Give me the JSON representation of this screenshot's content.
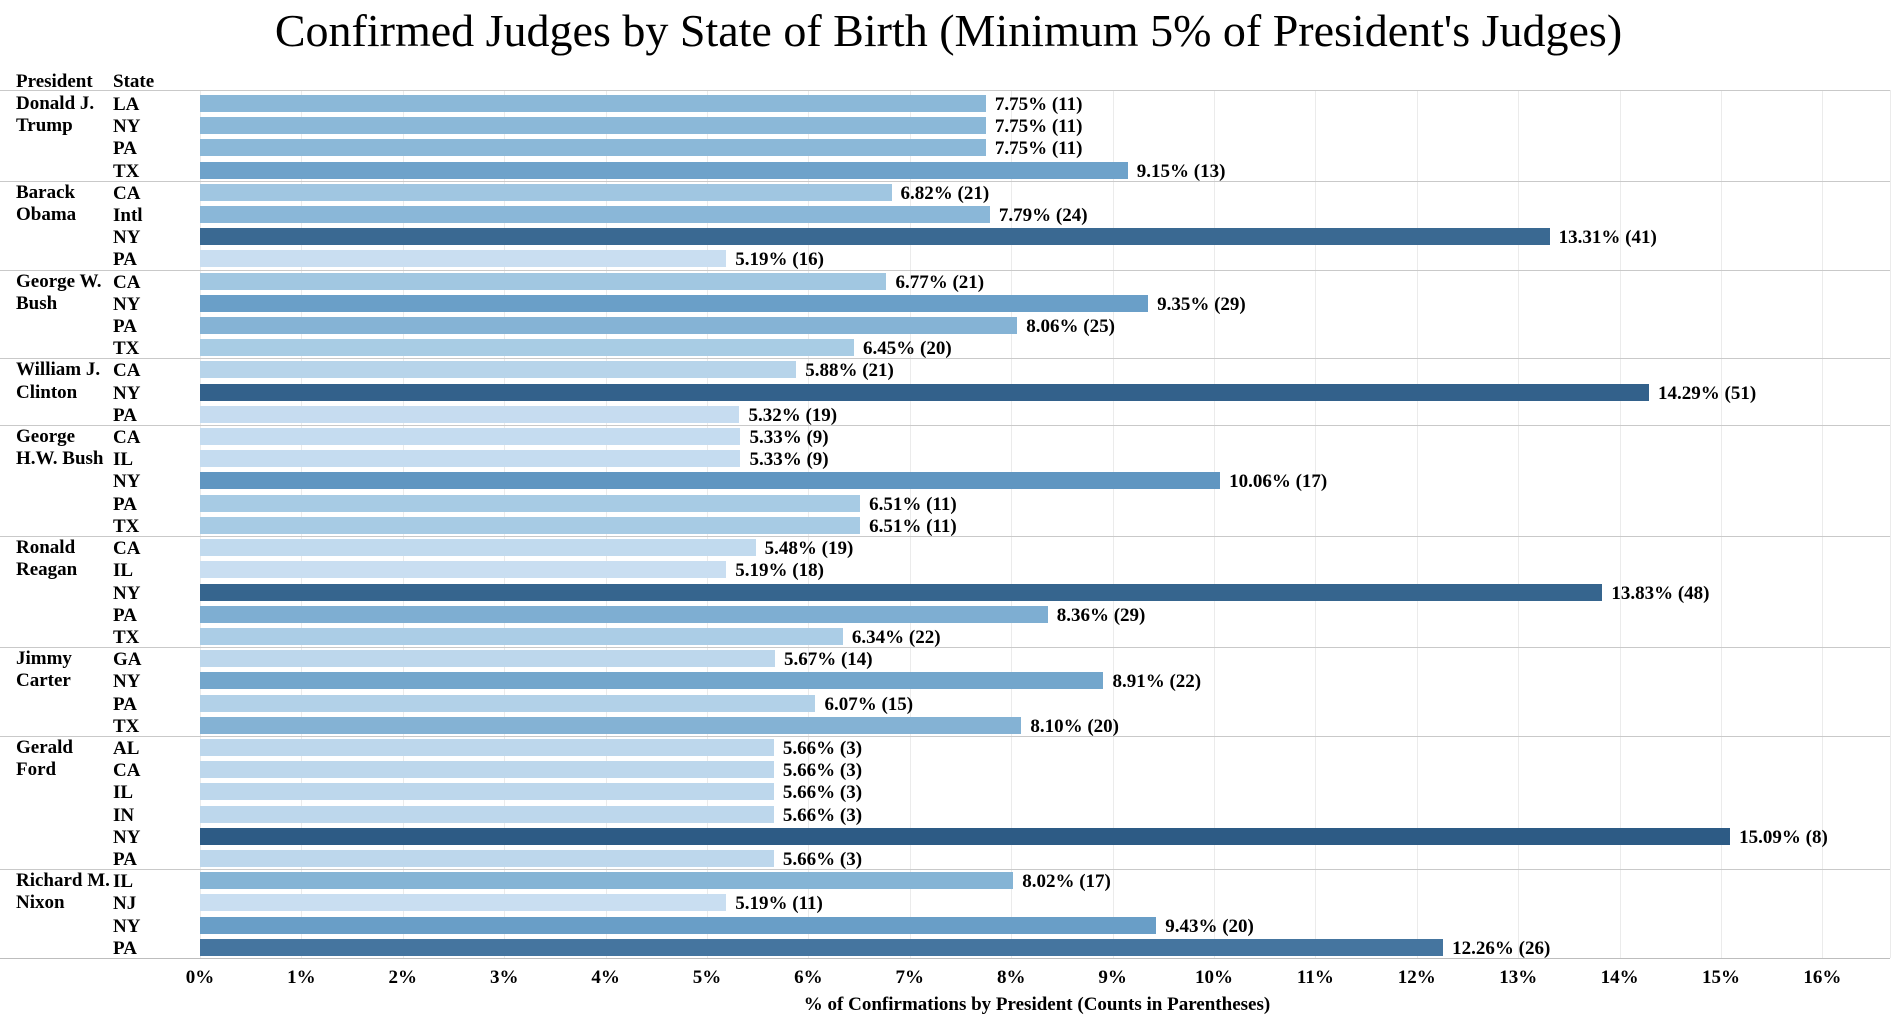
{
  "page": {
    "title": "Confirmed Judges by State of Birth (Minimum 5% of President's Judges)"
  },
  "table_headers": {
    "president": "President",
    "state": "State"
  },
  "x_axis": {
    "tick_labels": [
      "0%",
      "1%",
      "2%",
      "3%",
      "4%",
      "5%",
      "6%",
      "7%",
      "8%",
      "9%",
      "10%",
      "11%",
      "12%",
      "13%",
      "14%",
      "15%",
      "16%"
    ],
    "title": "% of Confirmations by President (Counts in Parentheses)"
  },
  "chart_data": {
    "type": "bar",
    "orientation": "horizontal",
    "title": "Confirmed Judges by State of Birth (Minimum 5% of President's Judges)",
    "xlabel": "% of Confirmations by President (Counts in Parentheses)",
    "xlim": [
      0,
      16.7
    ],
    "x_tick_step_percent": 1,
    "grid": true,
    "bar_color_scale": {
      "description": "sequential blues; darker bar = higher percent",
      "anchors": [
        {
          "value": 5.19,
          "color": "#c9def1"
        },
        {
          "value": 6.5,
          "color": "#a7cbe4"
        },
        {
          "value": 7.75,
          "color": "#8bb8d8"
        },
        {
          "value": 9.4,
          "color": "#699ec7"
        },
        {
          "value": 10.06,
          "color": "#6096c1"
        },
        {
          "value": 12.26,
          "color": "#45759f"
        },
        {
          "value": 13.31,
          "color": "#3a6992"
        },
        {
          "value": 15.09,
          "color": "#2d5b85"
        }
      ]
    },
    "groups": [
      {
        "president": "Donald J. Trump",
        "president_lines": [
          "Donald J.",
          "Trump"
        ],
        "bars": [
          {
            "state": "LA",
            "percent": 7.75,
            "count": 11,
            "label": "7.75% (11)"
          },
          {
            "state": "NY",
            "percent": 7.75,
            "count": 11,
            "label": "7.75% (11)"
          },
          {
            "state": "PA",
            "percent": 7.75,
            "count": 11,
            "label": "7.75% (11)"
          },
          {
            "state": "TX",
            "percent": 9.15,
            "count": 13,
            "label": "9.15% (13)"
          }
        ]
      },
      {
        "president": "Barack Obama",
        "president_lines": [
          "Barack",
          "Obama"
        ],
        "bars": [
          {
            "state": "CA",
            "percent": 6.82,
            "count": 21,
            "label": "6.82% (21)"
          },
          {
            "state": "Intl",
            "percent": 7.79,
            "count": 24,
            "label": "7.79% (24)"
          },
          {
            "state": "NY",
            "percent": 13.31,
            "count": 41,
            "label": "13.31% (41)"
          },
          {
            "state": "PA",
            "percent": 5.19,
            "count": 16,
            "label": "5.19% (16)"
          }
        ]
      },
      {
        "president": "George W. Bush",
        "president_lines": [
          "George W.",
          "Bush"
        ],
        "bars": [
          {
            "state": "CA",
            "percent": 6.77,
            "count": 21,
            "label": "6.77% (21)"
          },
          {
            "state": "NY",
            "percent": 9.35,
            "count": 29,
            "label": "9.35% (29)"
          },
          {
            "state": "PA",
            "percent": 8.06,
            "count": 25,
            "label": "8.06% (25)"
          },
          {
            "state": "TX",
            "percent": 6.45,
            "count": 20,
            "label": "6.45% (20)"
          }
        ]
      },
      {
        "president": "William J. Clinton",
        "president_lines": [
          "William J.",
          "Clinton"
        ],
        "bars": [
          {
            "state": "CA",
            "percent": 5.88,
            "count": 21,
            "label": "5.88% (21)"
          },
          {
            "state": "NY",
            "percent": 14.29,
            "count": 51,
            "label": "14.29% (51)"
          },
          {
            "state": "PA",
            "percent": 5.32,
            "count": 19,
            "label": "5.32% (19)"
          }
        ]
      },
      {
        "president": "George H.W. Bush",
        "president_lines": [
          "George",
          "H.W. Bush"
        ],
        "bars": [
          {
            "state": "CA",
            "percent": 5.33,
            "count": 9,
            "label": "5.33% (9)"
          },
          {
            "state": "IL",
            "percent": 5.33,
            "count": 9,
            "label": "5.33% (9)"
          },
          {
            "state": "NY",
            "percent": 10.06,
            "count": 17,
            "label": "10.06% (17)"
          },
          {
            "state": "PA",
            "percent": 6.51,
            "count": 11,
            "label": "6.51% (11)"
          },
          {
            "state": "TX",
            "percent": 6.51,
            "count": 11,
            "label": "6.51% (11)"
          }
        ]
      },
      {
        "president": "Ronald Reagan",
        "president_lines": [
          "Ronald",
          "Reagan"
        ],
        "bars": [
          {
            "state": "CA",
            "percent": 5.48,
            "count": 19,
            "label": "5.48% (19)"
          },
          {
            "state": "IL",
            "percent": 5.19,
            "count": 18,
            "label": "5.19% (18)"
          },
          {
            "state": "NY",
            "percent": 13.83,
            "count": 48,
            "label": "13.83% (48)"
          },
          {
            "state": "PA",
            "percent": 8.36,
            "count": 29,
            "label": "8.36% (29)"
          },
          {
            "state": "TX",
            "percent": 6.34,
            "count": 22,
            "label": "6.34% (22)"
          }
        ]
      },
      {
        "president": "Jimmy Carter",
        "president_lines": [
          "Jimmy",
          "Carter"
        ],
        "bars": [
          {
            "state": "GA",
            "percent": 5.67,
            "count": 14,
            "label": "5.67% (14)"
          },
          {
            "state": "NY",
            "percent": 8.91,
            "count": 22,
            "label": "8.91% (22)"
          },
          {
            "state": "PA",
            "percent": 6.07,
            "count": 15,
            "label": "6.07% (15)"
          },
          {
            "state": "TX",
            "percent": 8.1,
            "count": 20,
            "label": "8.10% (20)"
          }
        ]
      },
      {
        "president": "Gerald Ford",
        "president_lines": [
          "Gerald",
          "Ford"
        ],
        "bars": [
          {
            "state": "AL",
            "percent": 5.66,
            "count": 3,
            "label": "5.66% (3)"
          },
          {
            "state": "CA",
            "percent": 5.66,
            "count": 3,
            "label": "5.66% (3)"
          },
          {
            "state": "IL",
            "percent": 5.66,
            "count": 3,
            "label": "5.66% (3)"
          },
          {
            "state": "IN",
            "percent": 5.66,
            "count": 3,
            "label": "5.66% (3)"
          },
          {
            "state": "NY",
            "percent": 15.09,
            "count": 8,
            "label": "15.09% (8)"
          },
          {
            "state": "PA",
            "percent": 5.66,
            "count": 3,
            "label": "5.66% (3)"
          }
        ]
      },
      {
        "president": "Richard M. Nixon",
        "president_lines": [
          "Richard M.",
          "Nixon"
        ],
        "bars": [
          {
            "state": "IL",
            "percent": 8.02,
            "count": 17,
            "label": "8.02% (17)"
          },
          {
            "state": "NJ",
            "percent": 5.19,
            "count": 11,
            "label": "5.19% (11)"
          },
          {
            "state": "NY",
            "percent": 9.43,
            "count": 20,
            "label": "9.43% (20)"
          },
          {
            "state": "PA",
            "percent": 12.26,
            "count": 26,
            "label": "12.26% (26)"
          }
        ]
      }
    ]
  }
}
